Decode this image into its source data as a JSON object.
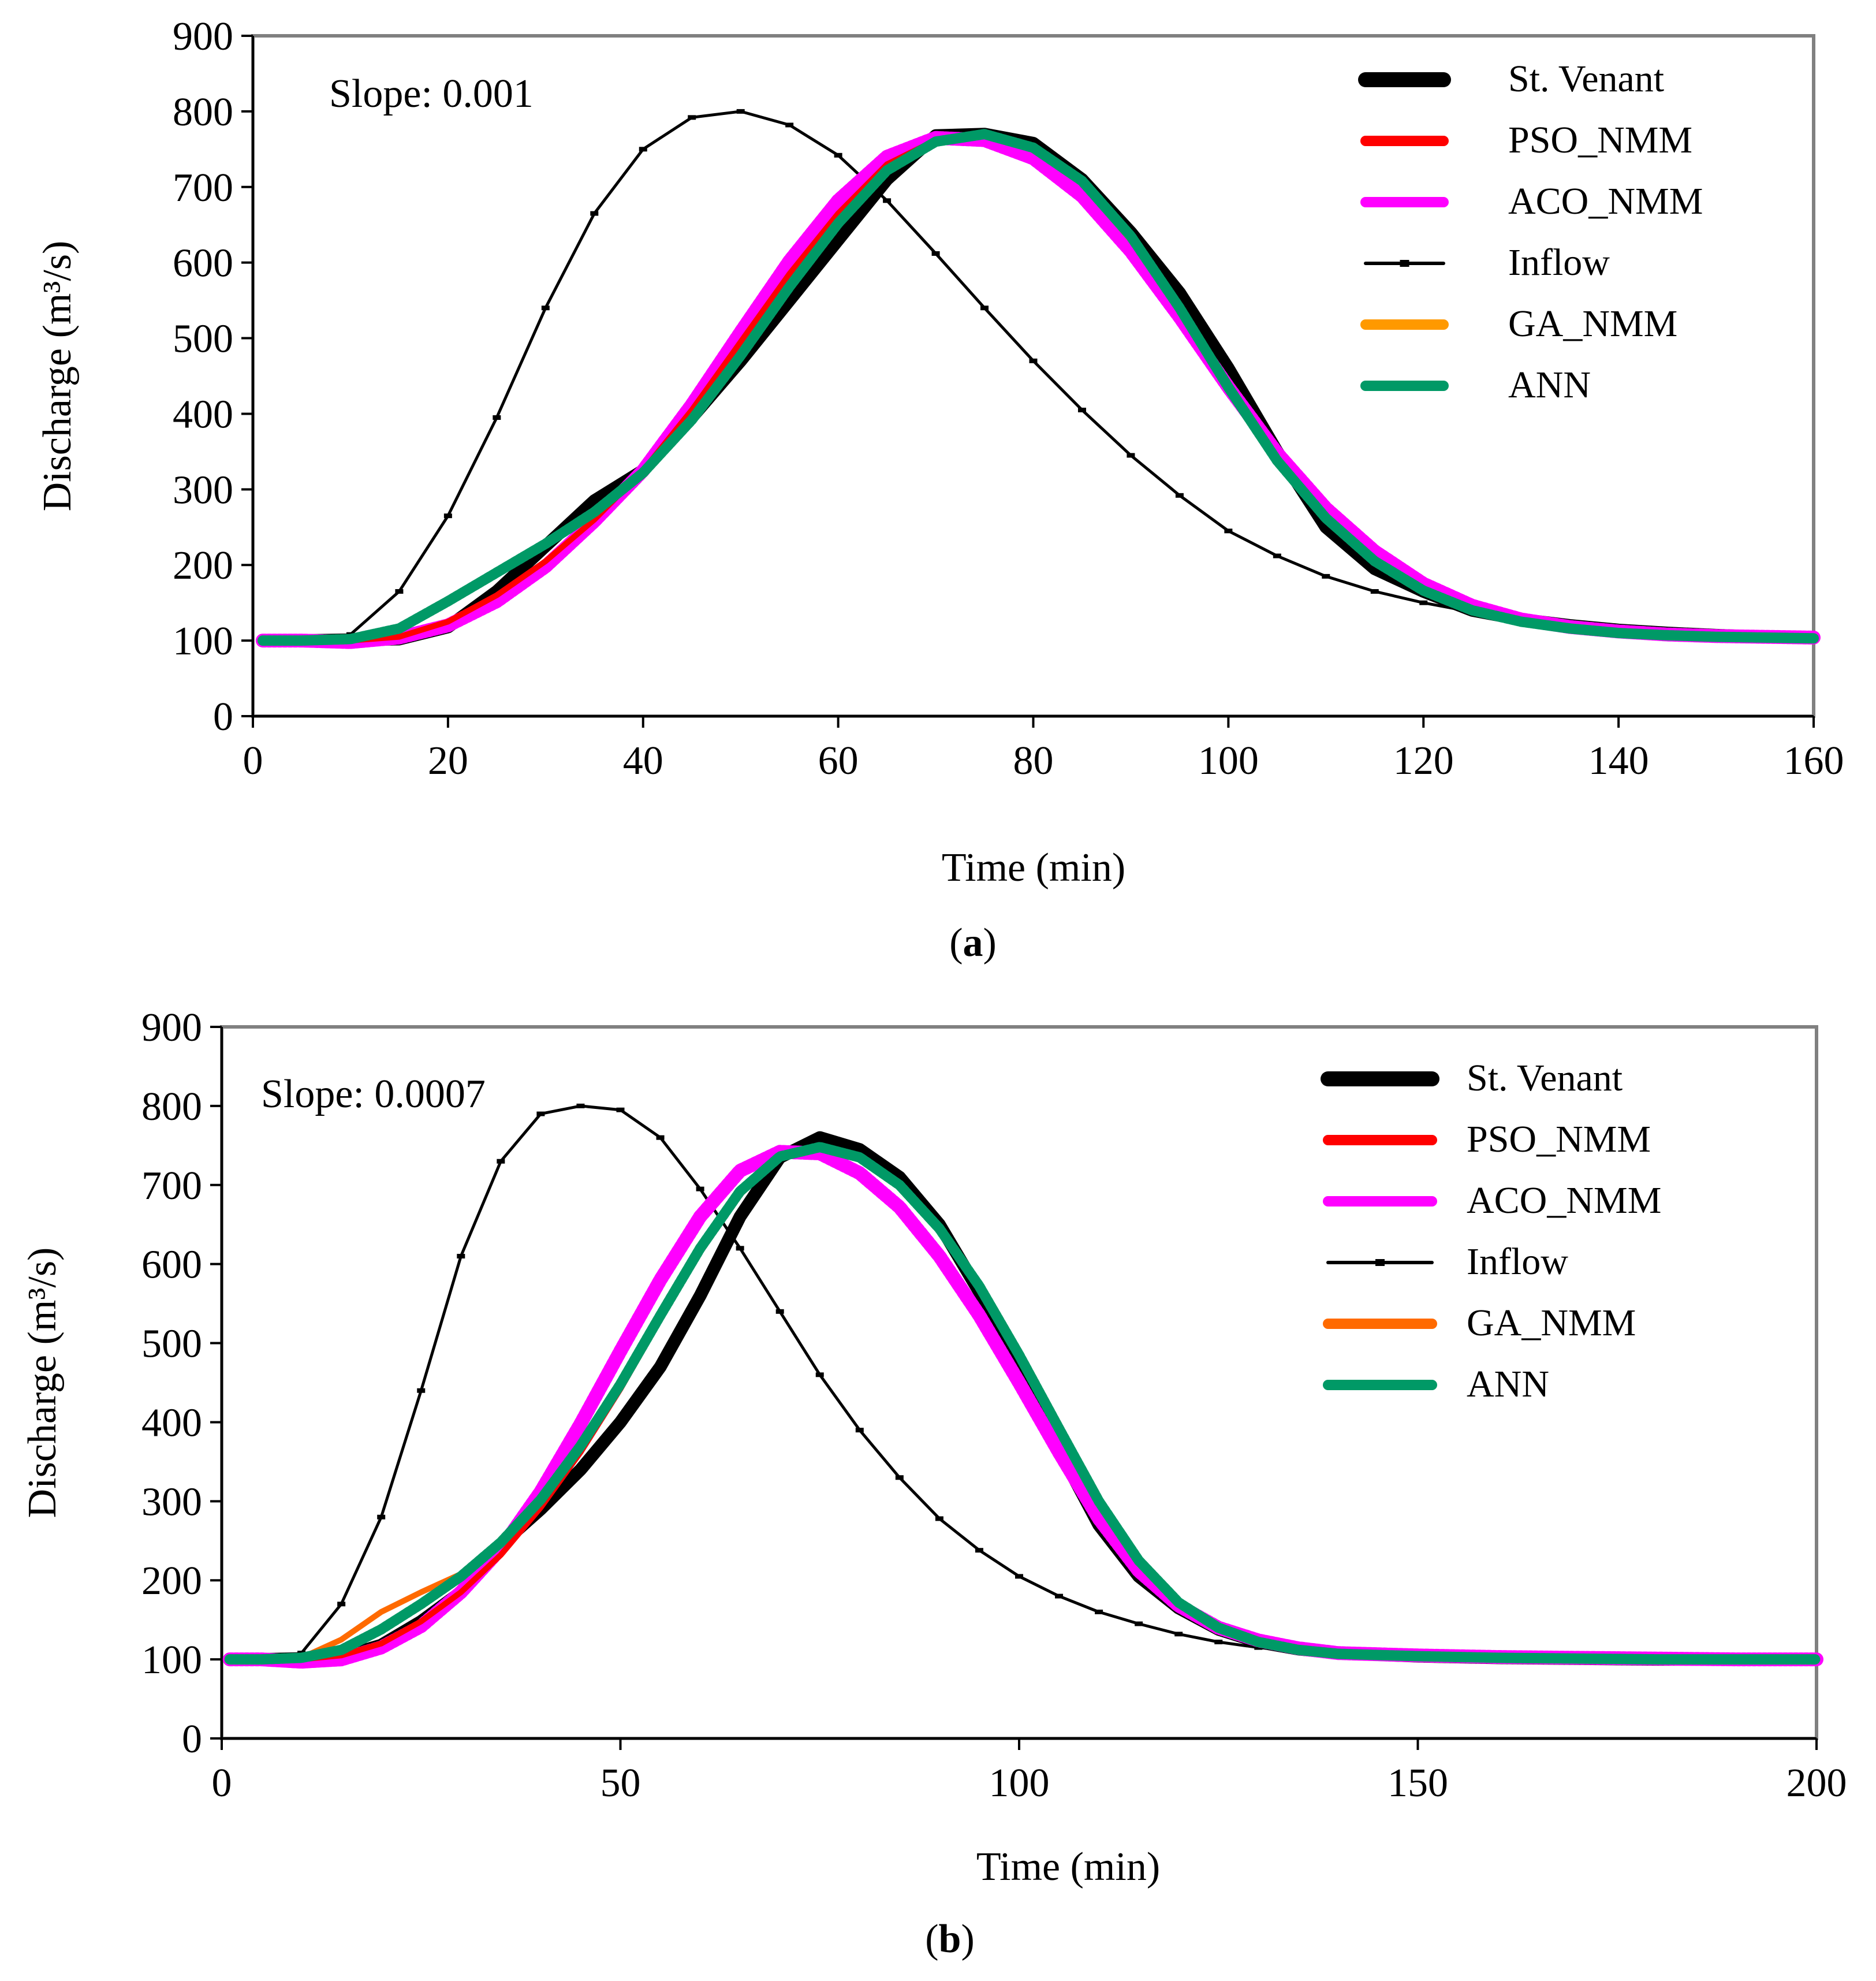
{
  "colors": {
    "st_venant": "#000000",
    "pso_nmm": "#ff0000",
    "aco_nmm": "#ff00ff",
    "inflow": "#000000",
    "ga_nmm": "#ff9900",
    "ga_nmm_b": "#ff6a00",
    "ann": "#009966"
  },
  "chart_data": [
    {
      "type": "line",
      "panel_label": "a",
      "annotation": "Slope: 0.001",
      "xlabel": "Time (min)",
      "ylabel": "Discharge (m³/s)",
      "xlim": [
        0,
        160
      ],
      "ylim": [
        0,
        900
      ],
      "xticks": [
        0,
        20,
        40,
        60,
        80,
        100,
        120,
        140,
        160
      ],
      "yticks": [
        0,
        100,
        200,
        300,
        400,
        500,
        600,
        700,
        800,
        900
      ],
      "grid": false,
      "legend_position": "top-right",
      "x": [
        1,
        5,
        10,
        15,
        20,
        25,
        30,
        35,
        40,
        45,
        50,
        55,
        60,
        65,
        70,
        75,
        80,
        85,
        90,
        95,
        100,
        105,
        110,
        115,
        120,
        125,
        130,
        135,
        140,
        145,
        150,
        155,
        160
      ],
      "series": [
        {
          "name": "St. Venant",
          "key": "st_venant",
          "values": [
            100,
            100,
            101,
            102,
            118,
            165,
            225,
            285,
            325,
            395,
            470,
            550,
            630,
            710,
            768,
            770,
            758,
            710,
            640,
            560,
            460,
            350,
            250,
            195,
            165,
            140,
            128,
            120,
            114,
            110,
            107,
            105,
            104
          ]
        },
        {
          "name": "PSO_NMM",
          "key": "pso_nmm",
          "values": [
            100,
            100,
            100,
            105,
            125,
            160,
            205,
            260,
            325,
            405,
            495,
            585,
            665,
            730,
            762,
            770,
            752,
            705,
            630,
            535,
            432,
            338,
            262,
            205,
            166,
            140,
            125,
            116,
            110,
            107,
            105,
            104,
            103
          ]
        },
        {
          "name": "ACO_NMM",
          "key": "aco_nmm",
          "values": [
            100,
            100,
            98,
            104,
            120,
            152,
            198,
            258,
            325,
            412,
            508,
            602,
            682,
            740,
            765,
            762,
            738,
            688,
            615,
            528,
            435,
            348,
            275,
            218,
            175,
            146,
            128,
            118,
            112,
            108,
            106,
            105,
            104
          ]
        },
        {
          "name": "Inflow",
          "key": "inflow",
          "values": [
            100,
            100,
            108,
            165,
            265,
            395,
            540,
            665,
            750,
            792,
            800,
            782,
            742,
            682,
            612,
            540,
            470,
            405,
            345,
            292,
            245,
            212,
            185,
            165,
            150,
            138,
            128,
            120,
            114,
            110,
            107,
            105,
            104
          ]
        },
        {
          "name": "GA_NMM",
          "key": "ga_nmm",
          "values": [
            100,
            100,
            101,
            115,
            150,
            188,
            225,
            268,
            322,
            393,
            478,
            570,
            655,
            725,
            762,
            770,
            752,
            705,
            630,
            535,
            432,
            338,
            262,
            205,
            166,
            140,
            125,
            116,
            110,
            107,
            105,
            104,
            103
          ]
        },
        {
          "name": "ANN",
          "key": "ann",
          "values": [
            100,
            100,
            102,
            116,
            152,
            190,
            228,
            270,
            322,
            392,
            477,
            568,
            652,
            722,
            760,
            770,
            752,
            708,
            635,
            540,
            435,
            338,
            262,
            205,
            166,
            140,
            125,
            116,
            110,
            107,
            105,
            104,
            103
          ]
        }
      ]
    },
    {
      "type": "line",
      "panel_label": "b",
      "annotation": "Slope: 0.0007",
      "xlabel": "Time (min)",
      "ylabel": "Discharge (m³/s)",
      "xlim": [
        0,
        200
      ],
      "ylim": [
        0,
        900
      ],
      "xticks": [
        0,
        50,
        100,
        150,
        200
      ],
      "yticks": [
        0,
        100,
        200,
        300,
        400,
        500,
        600,
        700,
        800,
        900
      ],
      "grid": false,
      "legend_position": "top-right",
      "x": [
        1,
        5,
        10,
        15,
        20,
        25,
        30,
        35,
        40,
        45,
        50,
        55,
        60,
        65,
        70,
        75,
        80,
        85,
        90,
        95,
        100,
        105,
        110,
        115,
        120,
        125,
        130,
        135,
        140,
        150,
        160,
        170,
        180,
        190,
        200
      ],
      "series": [
        {
          "name": "St. Venant",
          "key": "st_venant",
          "values": [
            100,
            100,
            101,
            103,
            118,
            148,
            185,
            245,
            290,
            340,
            400,
            470,
            560,
            660,
            735,
            760,
            745,
            710,
            650,
            565,
            470,
            365,
            270,
            205,
            165,
            138,
            122,
            113,
            108,
            104,
            102,
            101,
            100,
            100,
            100
          ]
        },
        {
          "name": "PSO_NMM",
          "key": "pso_nmm",
          "values": [
            100,
            100,
            100,
            105,
            120,
            148,
            185,
            232,
            292,
            362,
            442,
            530,
            615,
            688,
            735,
            748,
            735,
            700,
            645,
            572,
            485,
            392,
            300,
            225,
            172,
            140,
            122,
            112,
            107,
            104,
            102,
            101,
            100,
            100,
            100
          ]
        },
        {
          "name": "ACO_NMM",
          "key": "aco_nmm",
          "values": [
            100,
            100,
            97,
            100,
            115,
            142,
            185,
            240,
            312,
            398,
            490,
            580,
            660,
            718,
            742,
            740,
            715,
            672,
            610,
            535,
            450,
            362,
            278,
            212,
            168,
            140,
            124,
            114,
            108,
            105,
            103,
            102,
            101,
            100,
            100
          ]
        },
        {
          "name": "Inflow",
          "key": "inflow",
          "values": [
            100,
            100,
            108,
            170,
            280,
            440,
            610,
            730,
            790,
            800,
            795,
            760,
            695,
            620,
            540,
            460,
            390,
            330,
            278,
            238,
            205,
            180,
            160,
            145,
            132,
            122,
            115,
            110,
            106,
            103,
            102,
            101,
            100,
            100,
            100
          ]
        },
        {
          "name": "GA_NMM",
          "key": "ga_nmm_b",
          "values": [
            100,
            100,
            102,
            125,
            160,
            185,
            208,
            245,
            300,
            368,
            445,
            532,
            618,
            690,
            735,
            748,
            735,
            700,
            645,
            572,
            485,
            390,
            298,
            222,
            170,
            138,
            120,
            111,
            106,
            103,
            102,
            101,
            100,
            100,
            100
          ]
        },
        {
          "name": "ANN",
          "key": "ann",
          "values": [
            100,
            100,
            102,
            112,
            138,
            170,
            205,
            248,
            302,
            370,
            448,
            535,
            620,
            692,
            736,
            748,
            735,
            700,
            645,
            572,
            485,
            392,
            300,
            225,
            172,
            140,
            122,
            112,
            107,
            104,
            102,
            101,
            100,
            100,
            100
          ]
        }
      ]
    }
  ]
}
